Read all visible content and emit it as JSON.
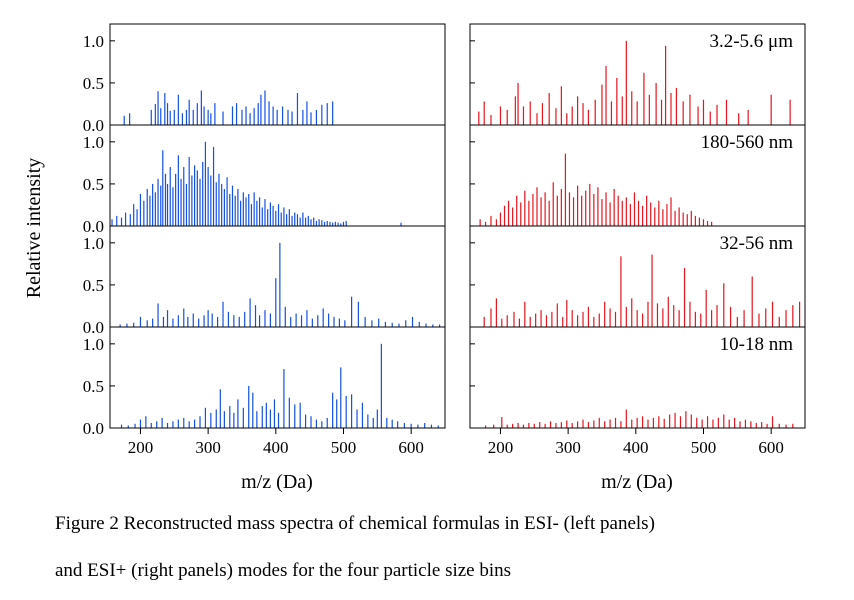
{
  "figure": {
    "ylabel": "Relative intensity",
    "xlabel": "m/z (Da)",
    "caption_line1": "Figure 2  Reconstructed mass spectra of chemical formulas in ESI- (left panels)",
    "caption_line2": "and ESI+ (right panels) modes for the four particle size bins",
    "colors": {
      "esi_neg": "#1450e6",
      "esi_pos": "#e8141e"
    }
  },
  "chart_data": [
    {
      "type": "bar",
      "mode": "ESI-",
      "row": 0,
      "col": 0,
      "label": "",
      "xlim": [
        155,
        650
      ],
      "ylim": [
        0,
        1.2
      ],
      "xticks": [
        200,
        300,
        400,
        500,
        600
      ],
      "yticks": [
        0.0,
        0.5,
        1.0
      ],
      "ytick_labels": [
        "0.0",
        "0.5",
        "1.0"
      ],
      "xtick_labels": [],
      "grid": false,
      "x": [
        176,
        184,
        216,
        222,
        226,
        230,
        236,
        240,
        244,
        250,
        256,
        262,
        268,
        272,
        278,
        284,
        290,
        294,
        300,
        304,
        310,
        322,
        336,
        342,
        350,
        356,
        362,
        368,
        374,
        378,
        384,
        390,
        396,
        402,
        410,
        418,
        424,
        432,
        440,
        446,
        452,
        460,
        468,
        476,
        484
      ],
      "values": [
        0.11,
        0.14,
        0.18,
        0.25,
        0.4,
        0.2,
        0.38,
        0.26,
        0.17,
        0.18,
        0.36,
        0.14,
        0.18,
        0.3,
        0.18,
        0.26,
        0.41,
        0.22,
        0.18,
        0.14,
        0.26,
        0.16,
        0.22,
        0.26,
        0.18,
        0.22,
        0.14,
        0.2,
        0.26,
        0.36,
        0.41,
        0.28,
        0.22,
        0.18,
        0.22,
        0.18,
        0.16,
        0.38,
        0.18,
        0.28,
        0.15,
        0.18,
        0.24,
        0.26,
        0.28
      ]
    },
    {
      "type": "bar",
      "mode": "ESI-",
      "row": 1,
      "col": 0,
      "label": "",
      "xlim": [
        155,
        650
      ],
      "ylim": [
        0,
        1.2
      ],
      "xticks": [
        200,
        300,
        400,
        500,
        600
      ],
      "yticks": [
        0.0,
        0.5,
        1.0
      ],
      "ytick_labels": [
        "0.0",
        "0.5",
        "1.0"
      ],
      "xtick_labels": [],
      "grid": false,
      "x": [
        158,
        165,
        172,
        178,
        185,
        190,
        195,
        200,
        205,
        210,
        214,
        218,
        222,
        226,
        230,
        233,
        237,
        240,
        244,
        248,
        252,
        256,
        260,
        264,
        268,
        272,
        276,
        280,
        284,
        288,
        292,
        296,
        300,
        304,
        308,
        312,
        316,
        320,
        324,
        328,
        332,
        336,
        340,
        344,
        348,
        352,
        356,
        360,
        364,
        368,
        372,
        376,
        380,
        384,
        388,
        392,
        396,
        400,
        404,
        408,
        412,
        416,
        420,
        424,
        428,
        432,
        436,
        440,
        444,
        448,
        452,
        456,
        460,
        464,
        468,
        472,
        476,
        480,
        484,
        488,
        492,
        496,
        500,
        504,
        585
      ],
      "values": [
        0.08,
        0.12,
        0.1,
        0.16,
        0.14,
        0.26,
        0.2,
        0.38,
        0.3,
        0.44,
        0.36,
        0.5,
        0.4,
        0.56,
        0.48,
        0.9,
        0.62,
        0.5,
        0.7,
        0.46,
        0.62,
        0.84,
        0.56,
        0.7,
        0.5,
        0.82,
        0.6,
        0.72,
        0.66,
        0.56,
        0.76,
        1.0,
        0.7,
        0.6,
        0.94,
        0.52,
        0.62,
        0.5,
        0.44,
        0.58,
        0.38,
        0.48,
        0.36,
        0.44,
        0.3,
        0.4,
        0.34,
        0.38,
        0.26,
        0.4,
        0.3,
        0.34,
        0.22,
        0.32,
        0.2,
        0.28,
        0.24,
        0.18,
        0.26,
        0.16,
        0.22,
        0.14,
        0.2,
        0.12,
        0.16,
        0.14,
        0.1,
        0.16,
        0.1,
        0.12,
        0.08,
        0.1,
        0.06,
        0.08,
        0.07,
        0.05,
        0.06,
        0.05,
        0.04,
        0.05,
        0.04,
        0.03,
        0.05,
        0.06,
        0.04
      ]
    },
    {
      "type": "bar",
      "mode": "ESI-",
      "row": 2,
      "col": 0,
      "label": "",
      "xlim": [
        155,
        650
      ],
      "ylim": [
        0,
        1.2
      ],
      "xticks": [
        200,
        300,
        400,
        500,
        600
      ],
      "yticks": [
        0.0,
        0.5,
        1.0
      ],
      "ytick_labels": [
        "0.0",
        "0.5",
        "1.0"
      ],
      "xtick_labels": [],
      "grid": false,
      "x": [
        170,
        180,
        190,
        200,
        210,
        218,
        226,
        234,
        240,
        248,
        256,
        264,
        270,
        278,
        286,
        294,
        300,
        306,
        314,
        322,
        330,
        338,
        346,
        354,
        362,
        370,
        376,
        384,
        392,
        400,
        406,
        414,
        422,
        430,
        438,
        446,
        454,
        462,
        470,
        478,
        486,
        494,
        502,
        512,
        522,
        532,
        542,
        552,
        562,
        572,
        582,
        592,
        602,
        612,
        622,
        632,
        642
      ],
      "values": [
        0.03,
        0.04,
        0.05,
        0.12,
        0.08,
        0.1,
        0.28,
        0.12,
        0.2,
        0.1,
        0.14,
        0.22,
        0.12,
        0.16,
        0.1,
        0.14,
        0.2,
        0.16,
        0.12,
        0.3,
        0.18,
        0.14,
        0.12,
        0.18,
        0.34,
        0.26,
        0.14,
        0.2,
        0.16,
        0.58,
        1.0,
        0.24,
        0.12,
        0.16,
        0.14,
        0.2,
        0.1,
        0.14,
        0.22,
        0.16,
        0.12,
        0.1,
        0.08,
        0.36,
        0.3,
        0.12,
        0.08,
        0.1,
        0.06,
        0.05,
        0.04,
        0.08,
        0.12,
        0.06,
        0.04,
        0.03,
        0.03
      ]
    },
    {
      "type": "bar",
      "mode": "ESI-",
      "row": 3,
      "col": 0,
      "label": "",
      "xlim": [
        155,
        650
      ],
      "ylim": [
        0,
        1.2
      ],
      "xticks": [
        200,
        300,
        400,
        500,
        600
      ],
      "yticks": [
        0.0,
        0.5,
        1.0
      ],
      "ytick_labels": [
        "0.0",
        "0.5",
        "1.0"
      ],
      "xtick_labels": [
        "200",
        "300",
        "400",
        "500",
        "600"
      ],
      "grid": false,
      "x": [
        172,
        182,
        192,
        200,
        208,
        216,
        224,
        232,
        240,
        248,
        256,
        264,
        272,
        280,
        288,
        296,
        304,
        312,
        318,
        324,
        332,
        338,
        344,
        352,
        360,
        366,
        372,
        380,
        386,
        392,
        398,
        404,
        412,
        420,
        428,
        436,
        444,
        452,
        460,
        468,
        476,
        484,
        490,
        496,
        504,
        512,
        520,
        528,
        536,
        544,
        550,
        556,
        564,
        572,
        580,
        590,
        600,
        610,
        620,
        630,
        640
      ],
      "values": [
        0.04,
        0.03,
        0.05,
        0.1,
        0.14,
        0.06,
        0.08,
        0.12,
        0.06,
        0.08,
        0.1,
        0.12,
        0.08,
        0.1,
        0.14,
        0.24,
        0.18,
        0.22,
        0.46,
        0.2,
        0.26,
        0.18,
        0.34,
        0.24,
        0.5,
        0.42,
        0.2,
        0.26,
        0.3,
        0.22,
        0.34,
        0.18,
        0.7,
        0.36,
        0.28,
        0.3,
        0.16,
        0.14,
        0.1,
        0.08,
        0.12,
        0.42,
        0.34,
        0.72,
        0.38,
        0.4,
        0.22,
        0.3,
        0.16,
        0.12,
        0.22,
        1.0,
        0.12,
        0.1,
        0.08,
        0.06,
        0.05,
        0.04,
        0.06,
        0.04,
        0.03
      ]
    },
    {
      "type": "bar",
      "mode": "ESI+",
      "row": 0,
      "col": 1,
      "label": "3.2-5.6 μm",
      "xlim": [
        155,
        650
      ],
      "ylim": [
        0,
        1.2
      ],
      "xticks": [
        200,
        300,
        400,
        500,
        600
      ],
      "yticks": [
        0.0,
        0.5,
        1.0
      ],
      "ytick_labels": [],
      "xtick_labels": [],
      "grid": false,
      "x": [
        168,
        176,
        186,
        200,
        210,
        222,
        226,
        234,
        244,
        254,
        262,
        272,
        282,
        290,
        298,
        306,
        314,
        322,
        330,
        340,
        350,
        356,
        364,
        372,
        380,
        386,
        394,
        402,
        412,
        420,
        430,
        438,
        444,
        452,
        460,
        470,
        480,
        492,
        500,
        510,
        520,
        534,
        552,
        566,
        600,
        628
      ],
      "values": [
        0.16,
        0.28,
        0.12,
        0.22,
        0.18,
        0.34,
        0.5,
        0.22,
        0.28,
        0.14,
        0.26,
        0.38,
        0.2,
        0.46,
        0.14,
        0.22,
        0.34,
        0.26,
        0.18,
        0.3,
        0.48,
        0.7,
        0.28,
        0.56,
        0.34,
        1.0,
        0.4,
        0.28,
        0.62,
        0.36,
        0.5,
        0.3,
        0.94,
        0.38,
        0.44,
        0.28,
        0.36,
        0.22,
        0.3,
        0.16,
        0.24,
        0.3,
        0.14,
        0.18,
        0.36,
        0.3
      ]
    },
    {
      "type": "bar",
      "mode": "ESI+",
      "row": 1,
      "col": 1,
      "label": "180-560 nm",
      "xlim": [
        155,
        650
      ],
      "ylim": [
        0,
        1.2
      ],
      "xticks": [
        200,
        300,
        400,
        500,
        600
      ],
      "yticks": [
        0.0,
        0.5,
        1.0
      ],
      "ytick_labels": [],
      "xtick_labels": [],
      "grid": false,
      "x": [
        170,
        178,
        186,
        194,
        200,
        206,
        212,
        218,
        224,
        230,
        236,
        242,
        248,
        254,
        260,
        266,
        272,
        278,
        284,
        290,
        296,
        302,
        308,
        314,
        320,
        326,
        332,
        338,
        344,
        350,
        356,
        362,
        368,
        374,
        380,
        386,
        392,
        398,
        404,
        410,
        416,
        422,
        428,
        434,
        440,
        446,
        452,
        458,
        464,
        470,
        476,
        482,
        488,
        494,
        500,
        506,
        512
      ],
      "values": [
        0.08,
        0.05,
        0.12,
        0.08,
        0.16,
        0.24,
        0.3,
        0.22,
        0.36,
        0.28,
        0.42,
        0.3,
        0.38,
        0.46,
        0.34,
        0.4,
        0.3,
        0.52,
        0.36,
        0.44,
        0.86,
        0.4,
        0.34,
        0.48,
        0.36,
        0.42,
        0.5,
        0.38,
        0.46,
        0.32,
        0.4,
        0.28,
        0.44,
        0.36,
        0.3,
        0.34,
        0.26,
        0.4,
        0.3,
        0.24,
        0.36,
        0.28,
        0.22,
        0.3,
        0.2,
        0.26,
        0.34,
        0.18,
        0.22,
        0.16,
        0.14,
        0.18,
        0.12,
        0.1,
        0.08,
        0.06,
        0.05
      ]
    },
    {
      "type": "bar",
      "mode": "ESI+",
      "row": 2,
      "col": 1,
      "label": "32-56 nm",
      "xlim": [
        155,
        650
      ],
      "ylim": [
        0,
        1.2
      ],
      "xticks": [
        200,
        300,
        400,
        500,
        600
      ],
      "yticks": [
        0.0,
        0.5,
        1.0
      ],
      "ytick_labels": [],
      "xtick_labels": [],
      "grid": false,
      "x": [
        176,
        186,
        194,
        202,
        210,
        220,
        228,
        236,
        244,
        252,
        260,
        268,
        276,
        284,
        292,
        298,
        306,
        314,
        322,
        330,
        338,
        346,
        354,
        362,
        370,
        378,
        386,
        394,
        402,
        410,
        418,
        424,
        432,
        440,
        448,
        456,
        464,
        472,
        480,
        488,
        496,
        504,
        512,
        520,
        530,
        540,
        550,
        560,
        572,
        582,
        592,
        602,
        612,
        622,
        632,
        642
      ],
      "values": [
        0.12,
        0.22,
        0.34,
        0.1,
        0.14,
        0.18,
        0.1,
        0.3,
        0.12,
        0.16,
        0.2,
        0.14,
        0.18,
        0.28,
        0.12,
        0.32,
        0.2,
        0.14,
        0.18,
        0.24,
        0.12,
        0.16,
        0.3,
        0.22,
        0.18,
        0.84,
        0.24,
        0.34,
        0.2,
        0.16,
        0.3,
        0.86,
        0.28,
        0.22,
        0.36,
        0.26,
        0.2,
        0.7,
        0.3,
        0.18,
        0.16,
        0.44,
        0.2,
        0.26,
        0.52,
        0.24,
        0.12,
        0.2,
        0.6,
        0.16,
        0.22,
        0.3,
        0.12,
        0.2,
        0.26,
        0.3
      ]
    },
    {
      "type": "bar",
      "mode": "ESI+",
      "row": 3,
      "col": 1,
      "label": "10-18 nm",
      "xlim": [
        155,
        650
      ],
      "ylim": [
        0,
        1.2
      ],
      "xticks": [
        200,
        300,
        400,
        500,
        600
      ],
      "yticks": [
        0.0,
        0.5,
        1.0
      ],
      "ytick_labels": [],
      "xtick_labels": [
        "200",
        "300",
        "400",
        "500",
        "600"
      ],
      "grid": false,
      "x": [
        178,
        190,
        202,
        210,
        218,
        226,
        234,
        242,
        250,
        258,
        266,
        274,
        282,
        290,
        298,
        306,
        314,
        322,
        330,
        338,
        346,
        354,
        362,
        370,
        378,
        386,
        394,
        402,
        410,
        418,
        426,
        434,
        442,
        450,
        458,
        466,
        474,
        482,
        490,
        498,
        506,
        514,
        522,
        530,
        538,
        546,
        554,
        562,
        570,
        578,
        586,
        594,
        602,
        612,
        622,
        632
      ],
      "values": [
        0.03,
        0.04,
        0.13,
        0.04,
        0.05,
        0.06,
        0.04,
        0.06,
        0.05,
        0.07,
        0.05,
        0.08,
        0.06,
        0.07,
        0.09,
        0.06,
        0.08,
        0.1,
        0.07,
        0.09,
        0.12,
        0.08,
        0.1,
        0.12,
        0.08,
        0.22,
        0.1,
        0.12,
        0.14,
        0.1,
        0.12,
        0.14,
        0.11,
        0.16,
        0.18,
        0.14,
        0.2,
        0.16,
        0.12,
        0.1,
        0.14,
        0.1,
        0.12,
        0.16,
        0.1,
        0.12,
        0.08,
        0.1,
        0.08,
        0.06,
        0.07,
        0.05,
        0.14,
        0.05,
        0.04,
        0.05
      ]
    }
  ]
}
